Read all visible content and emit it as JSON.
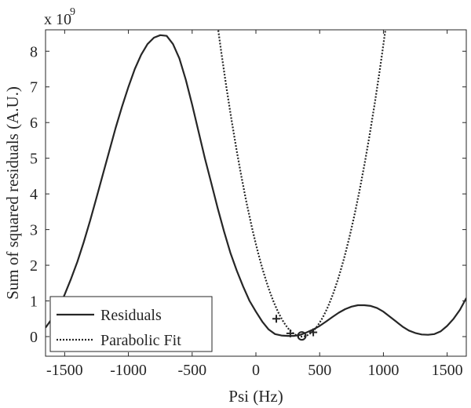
{
  "chart_data": {
    "type": "line",
    "xlabel": "Psi (Hz)",
    "ylabel": "Sum of squared residuals (A.U.)",
    "y_exponent": {
      "base": "x 10",
      "power": "9"
    },
    "xlim": [
      -1650,
      1650
    ],
    "ylim": [
      -0.55,
      8.6
    ],
    "xticks": [
      -1500,
      -1000,
      -500,
      0,
      500,
      1000,
      1500
    ],
    "xtick_labels": [
      "-1500",
      "-1000",
      "-500",
      "0",
      "500",
      "1000",
      "1500"
    ],
    "yticks": [
      0,
      1,
      2,
      3,
      4,
      5,
      6,
      7,
      8
    ],
    "ytick_labels": [
      "0",
      "1",
      "2",
      "3",
      "4",
      "5",
      "6",
      "7",
      "8"
    ],
    "grid": false,
    "legend_position": "bottom-left",
    "series": [
      {
        "name": "Residuals",
        "style": "solid",
        "x": [
          -1650,
          -1600,
          -1550,
          -1500,
          -1450,
          -1400,
          -1350,
          -1300,
          -1250,
          -1200,
          -1150,
          -1100,
          -1050,
          -1000,
          -950,
          -900,
          -850,
          -800,
          -750,
          -700,
          -650,
          -600,
          -550,
          -500,
          -450,
          -400,
          -350,
          -300,
          -250,
          -200,
          -150,
          -100,
          -50,
          0,
          50,
          100,
          150,
          200,
          250,
          300,
          350,
          400,
          450,
          500,
          550,
          600,
          650,
          700,
          750,
          800,
          850,
          900,
          950,
          1000,
          1050,
          1100,
          1150,
          1200,
          1250,
          1300,
          1350,
          1400,
          1450,
          1500,
          1550,
          1600,
          1650
        ],
        "y": [
          0.25,
          0.5,
          0.77,
          1.18,
          1.62,
          2.1,
          2.65,
          3.25,
          3.9,
          4.55,
          5.2,
          5.85,
          6.45,
          7.0,
          7.5,
          7.9,
          8.2,
          8.38,
          8.45,
          8.43,
          8.2,
          7.8,
          7.2,
          6.5,
          5.75,
          5.0,
          4.3,
          3.6,
          2.95,
          2.35,
          1.85,
          1.4,
          1.0,
          0.7,
          0.42,
          0.2,
          0.07,
          0.03,
          0.02,
          0.02,
          0.05,
          0.12,
          0.2,
          0.3,
          0.42,
          0.55,
          0.67,
          0.77,
          0.84,
          0.88,
          0.88,
          0.86,
          0.8,
          0.7,
          0.56,
          0.42,
          0.28,
          0.17,
          0.1,
          0.06,
          0.05,
          0.07,
          0.15,
          0.3,
          0.5,
          0.75,
          1.08
        ]
      },
      {
        "name": "Parabolic Fit",
        "style": "dotted",
        "vertex_x": 360,
        "vertex_y": 0.0,
        "curvature_per_hz2": 2e-05
      }
    ],
    "markers": [
      {
        "shape": "plus",
        "x": 160,
        "y": 0.5
      },
      {
        "shape": "plus",
        "x": 270,
        "y": 0.09
      },
      {
        "shape": "circle",
        "x": 360,
        "y": 0.02
      },
      {
        "shape": "plus",
        "x": 450,
        "y": 0.12
      }
    ]
  }
}
